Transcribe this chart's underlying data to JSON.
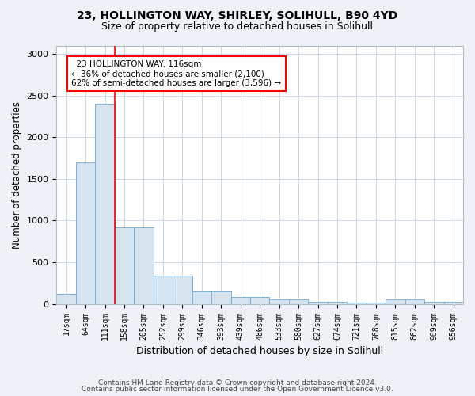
{
  "title1": "23, HOLLINGTON WAY, SHIRLEY, SOLIHULL, B90 4YD",
  "title2": "Size of property relative to detached houses in Solihull",
  "xlabel": "Distribution of detached houses by size in Solihull",
  "ylabel": "Number of detached properties",
  "bar_color": "#d6e4f0",
  "bar_edge_color": "#7aafd4",
  "categories": [
    "17sqm",
    "64sqm",
    "111sqm",
    "158sqm",
    "205sqm",
    "252sqm",
    "299sqm",
    "346sqm",
    "393sqm",
    "439sqm",
    "486sqm",
    "533sqm",
    "580sqm",
    "627sqm",
    "674sqm",
    "721sqm",
    "768sqm",
    "815sqm",
    "862sqm",
    "909sqm",
    "956sqm"
  ],
  "values": [
    120,
    1700,
    2400,
    920,
    920,
    340,
    340,
    150,
    150,
    80,
    80,
    50,
    50,
    30,
    30,
    20,
    20,
    50,
    50,
    30,
    30
  ],
  "ylim": [
    0,
    3100
  ],
  "yticks": [
    0,
    500,
    1000,
    1500,
    2000,
    2500,
    3000
  ],
  "vline_x_index": 2.5,
  "annotation_text": "  23 HOLLINGTON WAY: 116sqm\n← 36% of detached houses are smaller (2,100)\n62% of semi-detached houses are larger (3,596) →",
  "annotation_box_color": "white",
  "annotation_box_edge": "red",
  "vline_color": "red",
  "footer1": "Contains HM Land Registry data © Crown copyright and database right 2024.",
  "footer2": "Contains public sector information licensed under the Open Government Licence v3.0.",
  "background_color": "#eef2f7",
  "plot_bg_color": "white",
  "grid_color": "#ccd8e4"
}
